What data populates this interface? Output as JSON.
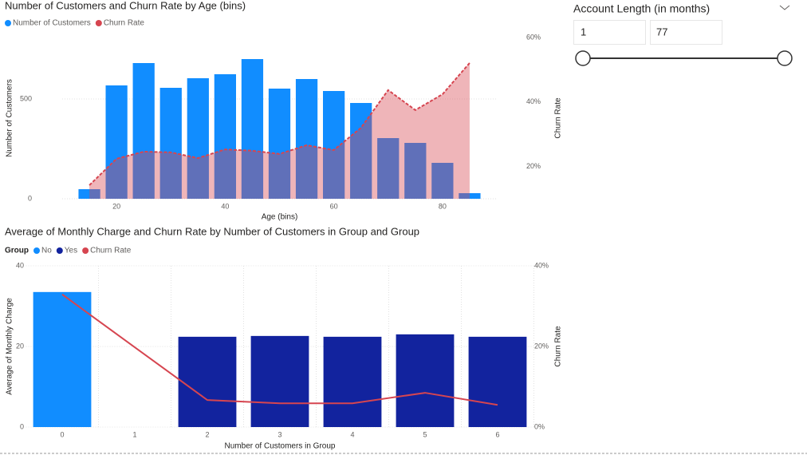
{
  "chart_data": [
    {
      "type": "bar_area",
      "title": "Number of Customers and Churn Rate by Age (bins)",
      "x_label": "Age (bins)",
      "y_label": "Number of Customers",
      "y2_label": "Churn Rate",
      "x": [
        15,
        20,
        25,
        30,
        35,
        40,
        45,
        50,
        55,
        60,
        65,
        70,
        75,
        80,
        85
      ],
      "series": [
        {
          "name": "Number of Customers",
          "type": "bar",
          "color": "#118dff",
          "values": [
            48,
            568,
            680,
            556,
            604,
            624,
            700,
            552,
            600,
            540,
            480,
            304,
            280,
            180,
            28
          ]
        },
        {
          "name": "Churn Rate",
          "type": "area",
          "axis": "y2",
          "color": "#d64550",
          "values": [
            14.2,
            22.4,
            24.6,
            24.4,
            22.6,
            25.3,
            24.9,
            23.9,
            26.6,
            25.1,
            32,
            43.7,
            37.5,
            42.4,
            52.1
          ]
        }
      ],
      "xlim": [
        10,
        90
      ],
      "xticks": [
        20,
        40,
        60,
        80
      ],
      "ylim": [
        0,
        808
      ],
      "yticks": [
        0,
        500
      ],
      "y2lim": [
        10,
        60
      ],
      "y2ticks": [
        {
          "value": 20,
          "label": "20%"
        },
        {
          "value": 40,
          "label": "40%"
        },
        {
          "value": 60,
          "label": "60%"
        }
      ],
      "grid": true
    },
    {
      "type": "bar_line",
      "title": "Average of Monthly Charge and Churn Rate by Number of Customers in Group and Group",
      "legend_title": "Group",
      "x_label": "Number of Customers in Group",
      "y_label": "Average of Monthly Charge",
      "y2_label": "Churn Rate",
      "categories": [
        "0",
        "1",
        "2",
        "3",
        "4",
        "5",
        "6"
      ],
      "series": [
        {
          "name": "No",
          "type": "bar",
          "color": "#118dff",
          "values": [
            33.5,
            null,
            null,
            null,
            null,
            null,
            null
          ]
        },
        {
          "name": "Yes",
          "type": "bar",
          "color": "#12239e",
          "values": [
            null,
            null,
            22.4,
            22.6,
            22.4,
            23.0,
            22.4
          ]
        },
        {
          "name": "Churn Rate",
          "type": "line",
          "axis": "y2",
          "color": "#d64550",
          "values": [
            32.9,
            19.8,
            6.7,
            5.9,
            5.9,
            8.5,
            5.5
          ]
        }
      ],
      "ylim": [
        0,
        40
      ],
      "yticks": [
        0,
        20,
        40
      ],
      "y2lim": [
        0,
        40
      ],
      "y2ticks": [
        {
          "value": 0,
          "label": "0%"
        },
        {
          "value": 20,
          "label": "20%"
        },
        {
          "value": 40,
          "label": "40%"
        }
      ],
      "grid": true
    }
  ],
  "slicer": {
    "title": "Account Length (in months)",
    "min": 1,
    "max": 77
  }
}
